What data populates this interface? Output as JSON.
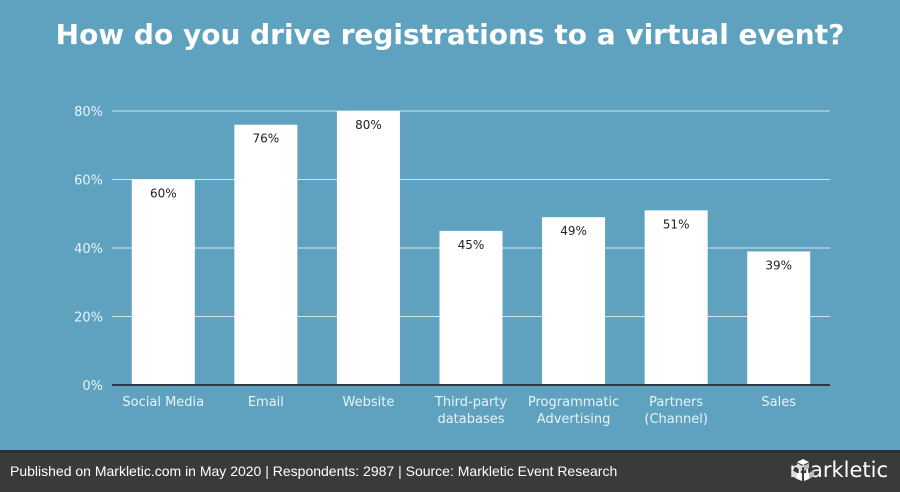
{
  "chart_data": {
    "type": "bar",
    "title": "How do you drive registrations to a virtual event?",
    "categories": [
      "Social Media",
      "Email",
      "Website",
      "Third-party databases",
      "Programmatic Advertising",
      "Partners (Channel)",
      "Sales"
    ],
    "category_lines": [
      [
        "Social Media"
      ],
      [
        "Email"
      ],
      [
        "Website"
      ],
      [
        "Third-party",
        "databases"
      ],
      [
        "Programmatic",
        "Advertising"
      ],
      [
        "Partners",
        "(Channel)"
      ],
      [
        "Sales"
      ]
    ],
    "values": [
      60,
      76,
      80,
      45,
      49,
      51,
      39
    ],
    "data_labels": [
      "60%",
      "76%",
      "80%",
      "45%",
      "49%",
      "51%",
      "39%"
    ],
    "ylim": [
      0,
      80
    ],
    "yticks": [
      0,
      20,
      40,
      60,
      80
    ],
    "ytick_labels": [
      "0%",
      "20%",
      "40%",
      "60%",
      "80%"
    ],
    "xlabel": "",
    "ylabel": "",
    "grid": true,
    "colors": {
      "background": "#5fa2c0",
      "bar": "#ffffff",
      "grid": "#cfe4ee",
      "axis": "#2b3a44"
    }
  },
  "footer": {
    "text": "Published on Markletic.com in May 2020 | Respondents: 2987 | Source: Markletic Event Research",
    "logo": "markletic"
  }
}
